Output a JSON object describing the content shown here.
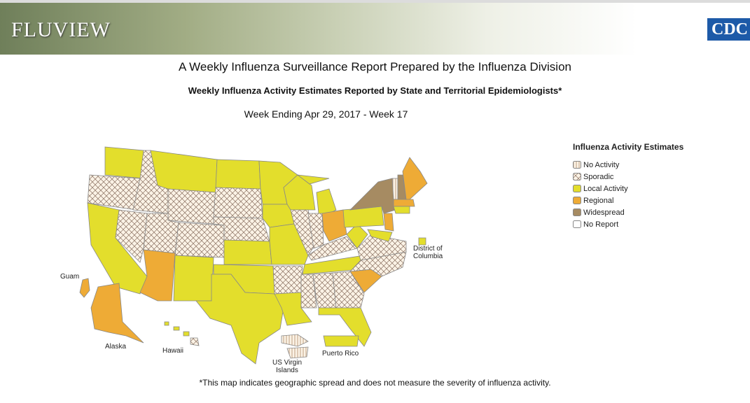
{
  "header": {
    "brand": "FLUVIEW",
    "logo": "CDC"
  },
  "title": "A Weekly Influenza Surveillance Report Prepared by the Influenza Division",
  "subtitle": "Weekly Influenza Activity Estimates Reported by State and Territorial Epidemiologists*",
  "week": "Week Ending Apr 29, 2017 - Week 17",
  "legend": {
    "title": "Influenza Activity Estimates",
    "items": [
      "No Activity",
      "Sporadic",
      "Local Activity",
      "Regional",
      "Widespread",
      "No Report"
    ]
  },
  "map_labels": {
    "guam": "Guam",
    "alaska": "Alaska",
    "hawaii": "Hawaii",
    "usvi": "US Virgin Islands",
    "puerto_rico": "Puerto Rico",
    "dc": "District of Columbia"
  },
  "footnote": "*This map indicates geographic spread and does not measure the severity of influenza activity."
}
